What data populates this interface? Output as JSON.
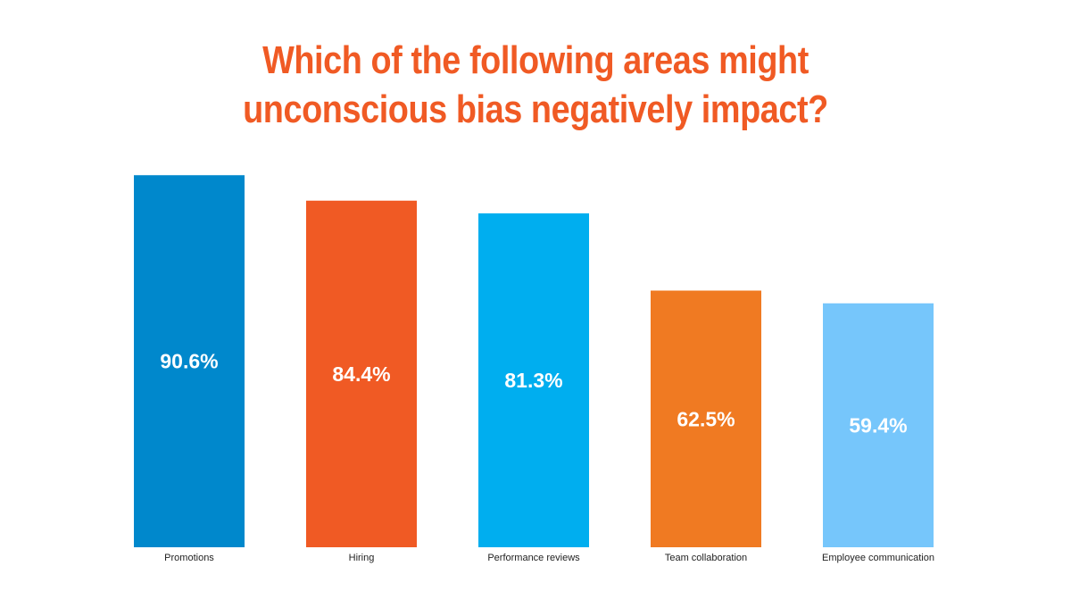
{
  "title": {
    "line1": "Which of the following areas might",
    "line2": "unconscious bias negatively impact?"
  },
  "chart_data": {
    "type": "bar",
    "title": "Which of the following areas might unconscious bias negatively impact?",
    "categories": [
      "Promotions",
      "Hiring",
      "Performance reviews",
      "Team collaboration",
      "Employee communication"
    ],
    "values": [
      90.6,
      84.4,
      81.3,
      62.5,
      59.4
    ],
    "value_labels": [
      "90.6%",
      "84.4%",
      "81.3%",
      "62.5%",
      "59.4%"
    ],
    "colors": [
      "#0088cc",
      "#f05a24",
      "#00aeef",
      "#f07a22",
      "#76c6fb"
    ],
    "ylim": [
      0,
      100
    ],
    "grid": false,
    "legend": "none",
    "xlabel": "",
    "ylabel": ""
  }
}
